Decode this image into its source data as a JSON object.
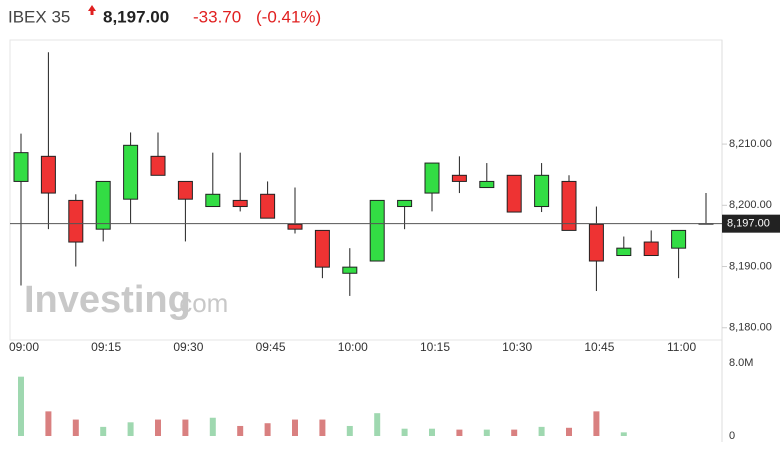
{
  "chart_data": {
    "type": "candlestick",
    "title": "IBEX 35",
    "last_price": {
      "value": 8197,
      "label": "8,197.00"
    },
    "change": "-33.70",
    "change_pct": "(-0.41%)",
    "watermark": [
      "Investing",
      ".com"
    ],
    "categories": [
      "09:00",
      null,
      null,
      "09:15",
      null,
      null,
      "09:30",
      null,
      null,
      "09:45",
      null,
      null,
      "10:00",
      null,
      null,
      "10:15",
      null,
      null,
      "10:30",
      null,
      null,
      "10:45",
      null,
      null,
      "11:00",
      null
    ],
    "open": [
      8203.9,
      8208.0,
      8200.8,
      8196.1,
      8201.0,
      8208.0,
      8203.9,
      8199.8,
      8200.8,
      8201.8,
      8196.9,
      8195.9,
      8188.9,
      8190.9,
      8199.8,
      8202.0,
      8204.9,
      8202.9,
      8204.9,
      8199.8,
      8203.9,
      8196.9,
      8191.8,
      8194.0,
      8193.0,
      8197.0
    ],
    "high": [
      8211.7,
      8225.0,
      8201.8,
      8203.9,
      8211.9,
      8211.9,
      8203.9,
      8208.6,
      8208.6,
      8203.9,
      8202.9,
      8195.9,
      8193.0,
      8200.8,
      8200.8,
      8206.9,
      8208.0,
      8206.9,
      8204.9,
      8206.9,
      8204.9,
      8199.8,
      8194.9,
      8195.9,
      8195.9,
      8202.0
    ],
    "low": [
      8186.9,
      8196.1,
      8190.0,
      8194.1,
      8197.1,
      8204.9,
      8194.1,
      8199.8,
      8199.0,
      8197.9,
      8195.4,
      8188.1,
      8185.2,
      8190.9,
      8196.1,
      8199.0,
      8202.0,
      8202.9,
      8198.9,
      8198.9,
      8195.9,
      8186.0,
      8191.8,
      8191.8,
      8188.1,
      8197.0
    ],
    "close": [
      8208.6,
      8202.0,
      8194.0,
      8203.9,
      8209.8,
      8204.9,
      8201.0,
      8201.8,
      8199.8,
      8197.9,
      8196.1,
      8189.9,
      8189.9,
      8200.8,
      8200.8,
      8206.9,
      8203.9,
      8203.9,
      8198.9,
      8204.9,
      8195.9,
      8190.9,
      8193.0,
      8191.8,
      8195.9,
      8197.0
    ],
    "up_color": "#33dd44",
    "down_color": "#ee3333",
    "ylim": [
      8178,
      8227
    ],
    "yticks": [
      {
        "value": 8180,
        "label": "8,180.00"
      },
      {
        "value": 8190,
        "label": "8,190.00"
      },
      {
        "value": 8200,
        "label": "8,200.00"
      },
      {
        "value": 8210,
        "label": "8,210.00"
      }
    ],
    "volume": [
      6500000,
      2700000,
      1800000,
      1000000,
      1500000,
      1800000,
      1800000,
      2000000,
      1100000,
      1400000,
      1800000,
      1800000,
      1100000,
      2500000,
      800000,
      800000,
      700000,
      700000,
      700000,
      1000000,
      900000,
      2700000,
      400000,
      null,
      null,
      null
    ],
    "volume_up_color": "#9fd8b0",
    "volume_down_color": "#d98080",
    "volume_lim": [
      0,
      8000000
    ],
    "volume_ticks": [
      {
        "value": 0,
        "label": "0"
      },
      {
        "value": 8000000,
        "label": "8.0M"
      }
    ]
  }
}
